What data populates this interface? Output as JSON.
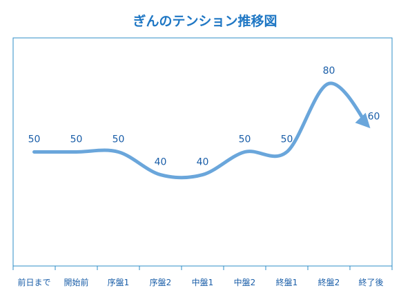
{
  "chart_data": {
    "type": "line",
    "title": "ぎんのテンション推移図",
    "categories": [
      "前日まで",
      "開始前",
      "序盤1",
      "序盤2",
      "中盤1",
      "中盤2",
      "終盤1",
      "終盤2",
      "終了後"
    ],
    "values": [
      50,
      50,
      50,
      40,
      40,
      50,
      50,
      80,
      60
    ],
    "ylim": [
      0,
      100
    ],
    "smooth": true,
    "end_arrow": true,
    "grid": false,
    "legend": "none",
    "colors": {
      "line": "#6aa6db",
      "frame": "#2e8cc7",
      "labels": "#1a5ea8",
      "title": "#1f77c4"
    }
  }
}
